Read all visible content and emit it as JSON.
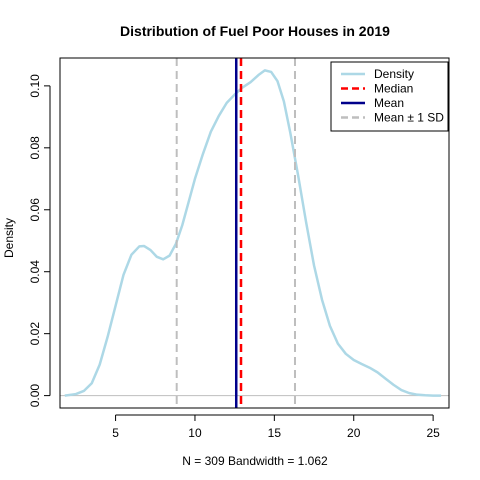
{
  "chart_data": {
    "type": "line",
    "title": "Distribution of Fuel Poor Houses in 2019",
    "xlabel": "N = 309   Bandwidth = 1.062",
    "ylabel": "Density",
    "xlim": [
      1.5,
      26
    ],
    "ylim": [
      -0.004,
      0.109
    ],
    "x_ticks": [
      5,
      10,
      15,
      20,
      25
    ],
    "y_ticks": [
      0.0,
      0.02,
      0.04,
      0.06,
      0.08,
      0.1
    ],
    "x_tick_labels": [
      "5",
      "10",
      "15",
      "20",
      "25"
    ],
    "y_tick_labels": [
      "0.00",
      "0.02",
      "0.04",
      "0.06",
      "0.08",
      "0.10"
    ],
    "grid": false,
    "legend_position": "top-right",
    "baseline": 0,
    "series": [
      {
        "name": "Density",
        "color": "#add8e6",
        "x": [
          1.8,
          2.5,
          3,
          3.5,
          4,
          4.5,
          5,
          5.5,
          6,
          6.5,
          6.8,
          7.2,
          7.6,
          8,
          8.4,
          8.8,
          9.2,
          9.6,
          10,
          10.5,
          11,
          11.5,
          12,
          12.5,
          13,
          13.5,
          14,
          14.4,
          14.8,
          15.2,
          15.6,
          16,
          16.5,
          17,
          17.5,
          18,
          18.5,
          19,
          19.5,
          20,
          20.5,
          21,
          21.5,
          22,
          22.5,
          23,
          23.5,
          24,
          24.5,
          25,
          25.5
        ],
        "y": [
          0.0,
          0.0005,
          0.0015,
          0.004,
          0.01,
          0.019,
          0.029,
          0.039,
          0.0455,
          0.0482,
          0.0483,
          0.047,
          0.0448,
          0.044,
          0.0452,
          0.049,
          0.055,
          0.0625,
          0.07,
          0.078,
          0.0852,
          0.0903,
          0.0945,
          0.0972,
          0.0995,
          0.1012,
          0.1035,
          0.105,
          0.1045,
          0.1015,
          0.095,
          0.085,
          0.071,
          0.056,
          0.042,
          0.031,
          0.0225,
          0.0168,
          0.0135,
          0.0115,
          0.0102,
          0.009,
          0.0075,
          0.0055,
          0.0035,
          0.0018,
          0.0008,
          0.0003,
          0.0001,
          0.0,
          0.0
        ]
      }
    ],
    "vlines": [
      {
        "name": "Median",
        "x": 12.9,
        "color": "#ff0000"
      },
      {
        "name": "Mean",
        "x": 12.6,
        "color": "#00008b"
      },
      {
        "name": "Mean ± 1 SD",
        "x": 8.85,
        "color": "#bebebe"
      },
      {
        "name": "Mean ± 1 SD",
        "x": 16.3,
        "color": "#bebebe"
      }
    ],
    "legend": [
      {
        "label": "Density",
        "color": "#add8e6",
        "dashed": false
      },
      {
        "label": "Median",
        "color": "#ff0000",
        "dashed": true
      },
      {
        "label": "Mean",
        "color": "#00008b",
        "dashed": false
      },
      {
        "label": "Mean ± 1 SD",
        "color": "#bebebe",
        "dashed": true
      }
    ]
  }
}
